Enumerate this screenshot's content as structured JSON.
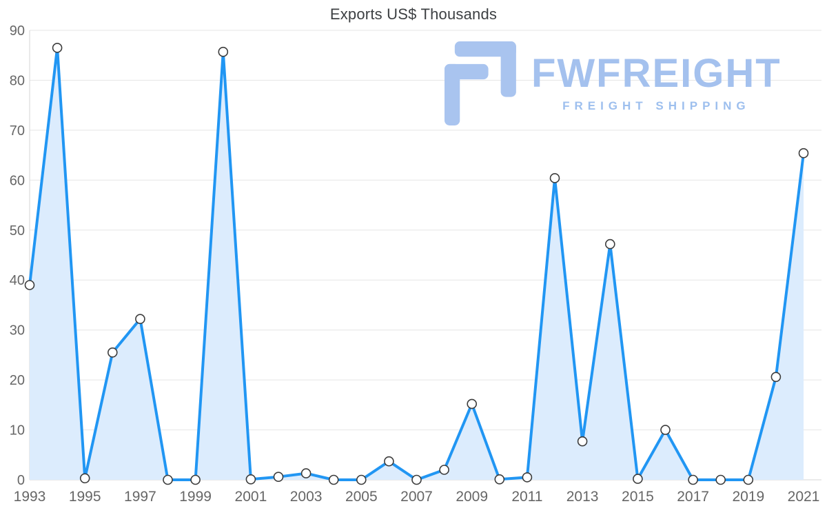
{
  "chart_data": {
    "type": "area",
    "title": "Exports US$ Thousands",
    "x": [
      1993,
      1994,
      1995,
      1996,
      1997,
      1998,
      1999,
      2000,
      2001,
      2002,
      2003,
      2004,
      2005,
      2006,
      2007,
      2008,
      2009,
      2010,
      2011,
      2012,
      2013,
      2014,
      2015,
      2016,
      2017,
      2018,
      2019,
      2020,
      2021
    ],
    "values": [
      39,
      86.5,
      0.3,
      25.5,
      32.2,
      0,
      0,
      85.7,
      0.1,
      0.6,
      1.3,
      0,
      0,
      3.7,
      0,
      2,
      15.2,
      0.1,
      0.5,
      60.4,
      7.7,
      47.2,
      0.2,
      10,
      0,
      0,
      0,
      20.6,
      65.4
    ],
    "xlabel": "",
    "ylabel": "",
    "ylim": [
      0,
      90
    ],
    "y_ticks": [
      0,
      10,
      20,
      30,
      40,
      50,
      60,
      70,
      80,
      90
    ],
    "x_tick_labels": [
      1993,
      1995,
      1997,
      1999,
      2001,
      2003,
      2005,
      2007,
      2009,
      2011,
      2013,
      2015,
      2017,
      2019,
      2021
    ],
    "grid": "horizontal",
    "legend": "none",
    "line_color": "#2196f3",
    "area_color": "#dcecfd",
    "marker_fill": "#ffffff",
    "marker_stroke": "#3b3b3b",
    "grid_color": "#e5e5e5",
    "axis_line_color": "#d6d6d6",
    "tick_label_color": "#666666"
  },
  "logo": {
    "text": "FWFREIGHT",
    "tagline": "FREIGHT SHIPPING",
    "color": "#a4c1ee"
  }
}
